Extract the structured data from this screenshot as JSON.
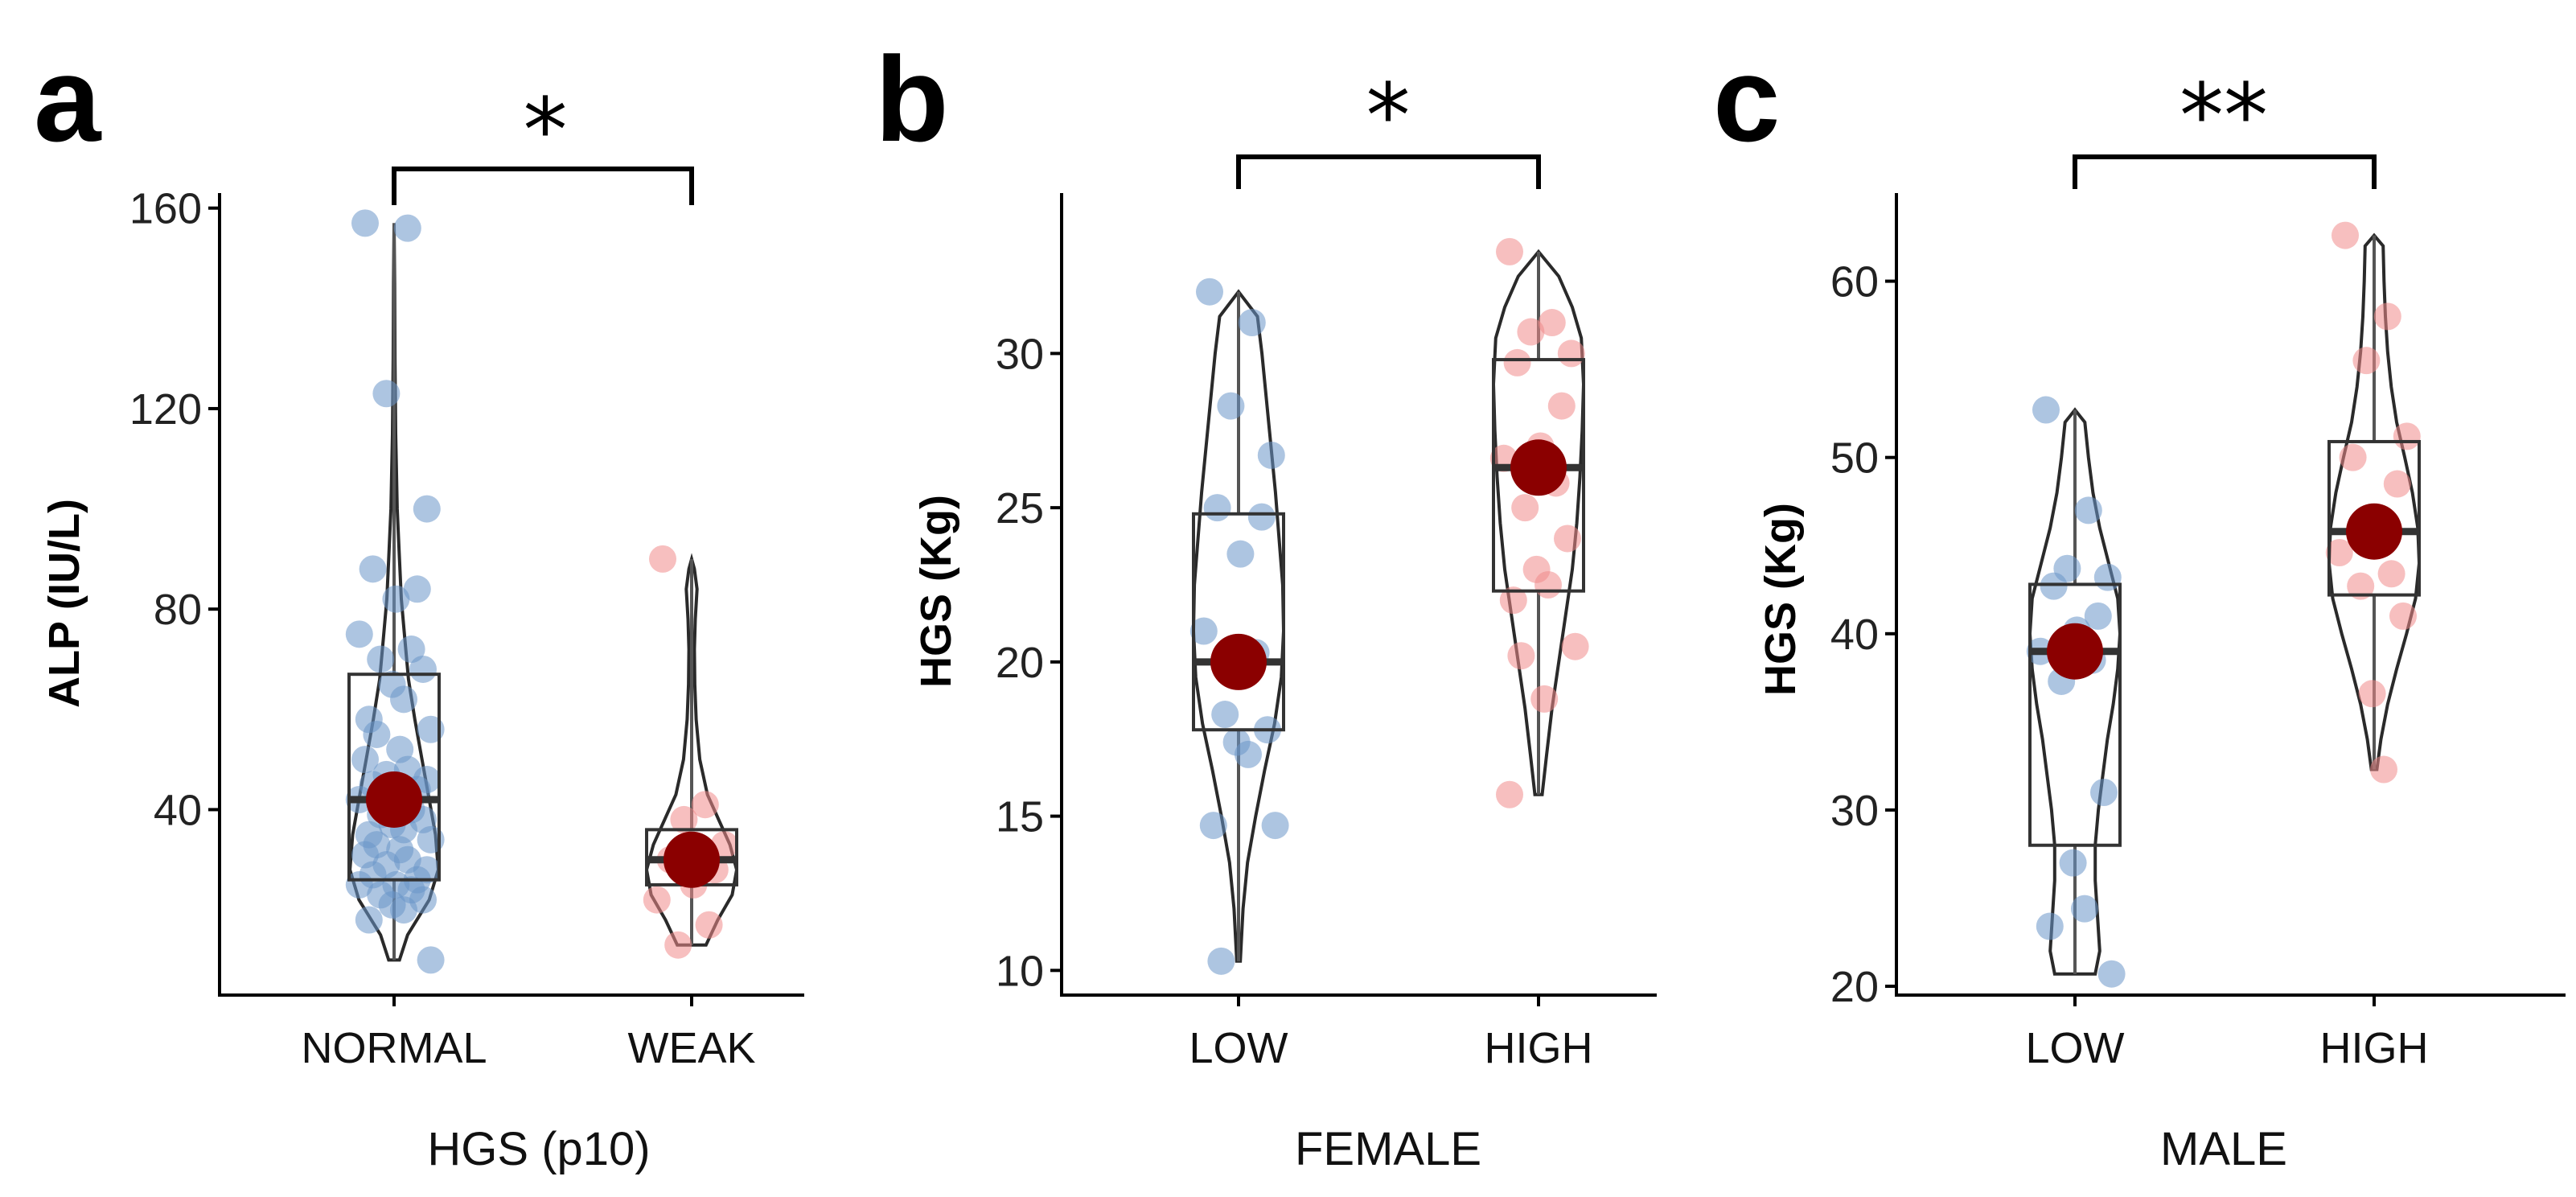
{
  "figure": {
    "panels": [
      "a",
      "b",
      "c"
    ]
  },
  "colors": {
    "group1_points": "#6a95c9",
    "group2_points": "#f08a8a",
    "mean_marker": "#8b0000"
  },
  "chart_data": [
    {
      "type": "violin",
      "panel_label": "a",
      "title": "",
      "xlabel": "HGS (p10)",
      "ylabel": "ALP (IU/L)",
      "ylim": [
        3,
        163
      ],
      "yticks": [
        40,
        80,
        120,
        160
      ],
      "categories": [
        "NORMAL",
        "WEAK"
      ],
      "significance": "*",
      "groups": [
        {
          "name": "NORMAL",
          "point_color": "#6a95c9",
          "mean": 42,
          "box": {
            "q1": 26,
            "median": 42,
            "q3": 67,
            "min": 10,
            "max": 157
          },
          "violin": [
            [
              10,
              0.12
            ],
            [
              15,
              0.3
            ],
            [
              22,
              0.78
            ],
            [
              28,
              0.98
            ],
            [
              35,
              0.92
            ],
            [
              42,
              0.78
            ],
            [
              50,
              0.62
            ],
            [
              58,
              0.46
            ],
            [
              66,
              0.32
            ],
            [
              74,
              0.24
            ],
            [
              82,
              0.16
            ],
            [
              90,
              0.12
            ],
            [
              100,
              0.07
            ],
            [
              115,
              0.035
            ],
            [
              130,
              0.02
            ],
            [
              145,
              0.012
            ],
            [
              157,
              0
            ]
          ],
          "points": [
            157,
            156,
            123,
            100,
            88,
            84,
            82,
            75,
            72,
            70,
            68,
            65,
            62,
            58,
            56,
            55,
            52,
            50,
            48,
            47,
            46,
            45,
            44,
            43,
            42,
            40,
            39,
            38,
            37,
            36,
            35,
            34,
            33,
            32,
            31,
            30,
            29,
            28,
            27,
            26,
            25,
            25,
            24,
            23,
            22,
            21,
            20,
            18,
            10
          ]
        },
        {
          "name": "WEAK",
          "point_color": "#f08a8a",
          "mean": 30,
          "box": {
            "q1": 25,
            "median": 30,
            "q3": 36,
            "min": 13,
            "max": 90
          },
          "violin": [
            [
              13,
              0.32
            ],
            [
              18,
              0.58
            ],
            [
              23,
              0.9
            ],
            [
              28,
              1.0
            ],
            [
              33,
              0.85
            ],
            [
              38,
              0.6
            ],
            [
              43,
              0.35
            ],
            [
              50,
              0.18
            ],
            [
              58,
              0.1
            ],
            [
              65,
              0.07
            ],
            [
              72,
              0.06
            ],
            [
              78,
              0.08
            ],
            [
              84,
              0.12
            ],
            [
              88,
              0.06
            ],
            [
              90,
              0
            ]
          ],
          "points": [
            90,
            41,
            38,
            33,
            30,
            28,
            25,
            22,
            17,
            13
          ]
        }
      ]
    },
    {
      "type": "violin",
      "panel_label": "b",
      "title": "",
      "xlabel": "FEMALE",
      "ylabel": "HGS (Kg)",
      "ylim": [
        9.2,
        35.2
      ],
      "yticks": [
        10,
        15,
        20,
        25,
        30
      ],
      "categories": [
        "LOW",
        "HIGH"
      ],
      "significance": "*",
      "groups": [
        {
          "name": "LOW",
          "point_color": "#6a95c9",
          "mean": 20,
          "box": {
            "q1": 17.8,
            "median": 20,
            "q3": 24.8,
            "min": 10.3,
            "max": 32
          },
          "violin": [
            [
              10.3,
              0.04
            ],
            [
              12,
              0.1
            ],
            [
              13.5,
              0.2
            ],
            [
              15,
              0.38
            ],
            [
              16.5,
              0.58
            ],
            [
              18,
              0.8
            ],
            [
              19.5,
              0.95
            ],
            [
              21,
              1.0
            ],
            [
              22.5,
              0.98
            ],
            [
              24,
              0.9
            ],
            [
              25.5,
              0.82
            ],
            [
              27,
              0.72
            ],
            [
              28.5,
              0.62
            ],
            [
              30,
              0.52
            ],
            [
              31.2,
              0.42
            ],
            [
              32,
              0
            ]
          ],
          "points": [
            32,
            31,
            28.3,
            26.7,
            25,
            24.7,
            23.5,
            21,
            20.3,
            18.3,
            17.8,
            17.4,
            17,
            14.7,
            14.7,
            10.3
          ]
        },
        {
          "name": "HIGH",
          "point_color": "#f08a8a",
          "mean": 26.3,
          "box": {
            "q1": 22.3,
            "median": 26.3,
            "q3": 29.8,
            "min": 15.7,
            "max": 33.3
          },
          "violin": [
            [
              15.7,
              0.08
            ],
            [
              17,
              0.18
            ],
            [
              18.5,
              0.3
            ],
            [
              20,
              0.45
            ],
            [
              21.5,
              0.6
            ],
            [
              23,
              0.75
            ],
            [
              24.5,
              0.85
            ],
            [
              26,
              0.92
            ],
            [
              27.5,
              0.97
            ],
            [
              29,
              1.0
            ],
            [
              30.5,
              0.95
            ],
            [
              31.5,
              0.75
            ],
            [
              32.5,
              0.45
            ],
            [
              33.3,
              0
            ]
          ],
          "points": [
            33.3,
            31,
            30.7,
            30,
            29.7,
            28.3,
            27,
            26.6,
            25.8,
            25,
            24,
            23,
            22.5,
            22,
            20.5,
            20.2,
            18.8,
            15.7
          ]
        }
      ]
    },
    {
      "type": "violin",
      "panel_label": "c",
      "title": "",
      "xlabel": "MALE",
      "ylabel": "HGS (Kg)",
      "ylim": [
        19.5,
        65
      ],
      "yticks": [
        20,
        30,
        40,
        50,
        60
      ],
      "categories": [
        "LOW",
        "HIGH"
      ],
      "significance": "**",
      "groups": [
        {
          "name": "LOW",
          "point_color": "#6a95c9",
          "mean": 39,
          "box": {
            "q1": 28,
            "median": 39,
            "q3": 42.8,
            "min": 20.7,
            "max": 52.7
          },
          "violin": [
            [
              20.7,
              0.45
            ],
            [
              22,
              0.55
            ],
            [
              24,
              0.5
            ],
            [
              26,
              0.45
            ],
            [
              28,
              0.45
            ],
            [
              30,
              0.52
            ],
            [
              32,
              0.62
            ],
            [
              34,
              0.72
            ],
            [
              36,
              0.85
            ],
            [
              38,
              0.95
            ],
            [
              40,
              1.0
            ],
            [
              42,
              0.95
            ],
            [
              44,
              0.75
            ],
            [
              46,
              0.55
            ],
            [
              48,
              0.4
            ],
            [
              50,
              0.3
            ],
            [
              52,
              0.22
            ],
            [
              52.7,
              0
            ]
          ],
          "points": [
            52.7,
            47,
            43.7,
            43.2,
            42.7,
            41,
            40.2,
            39,
            38.5,
            37.3,
            31,
            27,
            24.4,
            23.4,
            20.7
          ]
        },
        {
          "name": "HIGH",
          "point_color": "#f08a8a",
          "mean": 45.8,
          "box": {
            "q1": 42.2,
            "median": 45.8,
            "q3": 50.9,
            "min": 32.3,
            "max": 62.6
          },
          "violin": [
            [
              32.3,
              0.06
            ],
            [
              34,
              0.15
            ],
            [
              36,
              0.3
            ],
            [
              38,
              0.5
            ],
            [
              40,
              0.72
            ],
            [
              42,
              0.92
            ],
            [
              44,
              1.0
            ],
            [
              46,
              0.97
            ],
            [
              48,
              0.85
            ],
            [
              50,
              0.68
            ],
            [
              52,
              0.5
            ],
            [
              54,
              0.38
            ],
            [
              56,
              0.3
            ],
            [
              58,
              0.25
            ],
            [
              60,
              0.22
            ],
            [
              62,
              0.2
            ],
            [
              62.6,
              0
            ]
          ],
          "points": [
            62.6,
            58,
            55.5,
            51.2,
            50,
            48.5,
            45.8,
            44.6,
            43.4,
            42.7,
            41,
            36.6,
            32.3
          ]
        }
      ]
    }
  ]
}
